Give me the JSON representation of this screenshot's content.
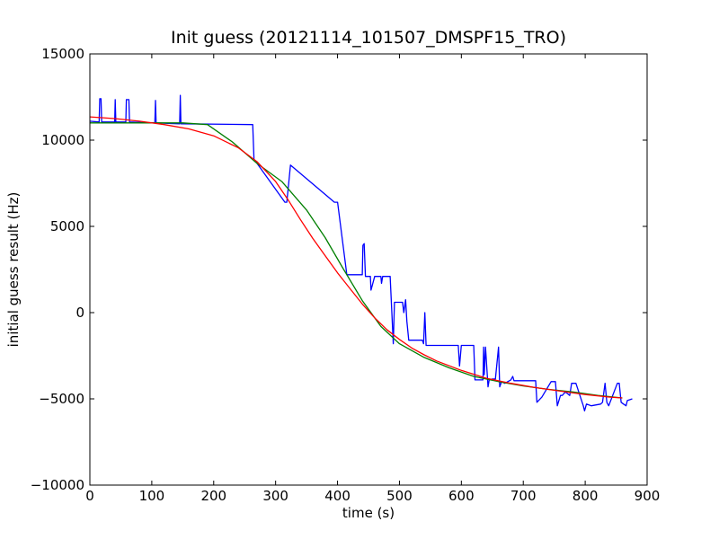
{
  "chart_data": {
    "type": "line",
    "title": "Init guess (20121114_101507_DMSPF15_TRO)",
    "xlabel": "time (s)",
    "ylabel": "initial guess result (Hz)",
    "xlim": [
      0,
      900
    ],
    "ylim": [
      -10000,
      15000
    ],
    "xticks": [
      0,
      100,
      200,
      300,
      400,
      500,
      600,
      700,
      800,
      900
    ],
    "yticks": [
      -10000,
      -5000,
      0,
      5000,
      10000,
      15000
    ],
    "xtick_labels": [
      "0",
      "100",
      "200",
      "300",
      "400",
      "500",
      "600",
      "700",
      "800",
      "900"
    ],
    "ytick_labels": [
      "−10000",
      "−5000",
      "0",
      "5000",
      "10000",
      "15000"
    ],
    "grid": false,
    "legend": "none",
    "series": [
      {
        "color": "#0000ff",
        "x": [
          0,
          15,
          16,
          18,
          19,
          40,
          41,
          42,
          58,
          59,
          60,
          63,
          64,
          105,
          106,
          107,
          145,
          146,
          147,
          263,
          265,
          315,
          318,
          322,
          324,
          395,
          400,
          415,
          432,
          440,
          441,
          443,
          445,
          453,
          454,
          460,
          465,
          470,
          471,
          473,
          475,
          485,
          490,
          492,
          505,
          507,
          510,
          512,
          515,
          525,
          537,
          539,
          541,
          543,
          595,
          597,
          600,
          603,
          605,
          620,
          622,
          625,
          635,
          636,
          637,
          639,
          643,
          645,
          650,
          655,
          660,
          662,
          665,
          670,
          675,
          680,
          683,
          685,
          720,
          722,
          730,
          745,
          748,
          752,
          755,
          760,
          763,
          768,
          775,
          778,
          785,
          797,
          799,
          802,
          810,
          825,
          828,
          832,
          835,
          838,
          852,
          855,
          858,
          862,
          866,
          868,
          876
        ],
        "y": [
          11100,
          11050,
          12400,
          12400,
          11050,
          11050,
          12350,
          11050,
          11050,
          12350,
          12350,
          12350,
          11050,
          11000,
          12300,
          11000,
          10950,
          12600,
          10950,
          10900,
          8900,
          6400,
          6400,
          7800,
          8550,
          6400,
          6400,
          2200,
          2200,
          2200,
          3900,
          4000,
          2100,
          2100,
          1300,
          2100,
          2100,
          2100,
          1700,
          2100,
          2100,
          2100,
          -1800,
          600,
          600,
          0,
          750,
          -500,
          -1600,
          -1600,
          -1600,
          -1800,
          0,
          -1900,
          -1900,
          -3100,
          -1900,
          -1900,
          -1900,
          -1900,
          -3900,
          -3900,
          -3900,
          -2000,
          -3600,
          -2000,
          -4300,
          -3900,
          -3850,
          -3850,
          -2000,
          -4300,
          -4000,
          -4100,
          -4000,
          -3900,
          -3700,
          -3950,
          -3950,
          -5200,
          -4900,
          -4000,
          -4000,
          -4000,
          -5400,
          -4800,
          -4800,
          -4600,
          -4800,
          -4100,
          -4100,
          -5400,
          -5700,
          -5300,
          -5400,
          -5300,
          -5200,
          -4100,
          -5200,
          -5400,
          -4100,
          -4100,
          -5200,
          -5300,
          -5400,
          -5100,
          -5000
        ]
      },
      {
        "color": "#007f00",
        "x": [
          0,
          50,
          100,
          150,
          190,
          230,
          270,
          310,
          350,
          380,
          410,
          440,
          470,
          500,
          540,
          580,
          620,
          660,
          700,
          740,
          780,
          820,
          860
        ],
        "y": [
          11000,
          11000,
          11000,
          11000,
          10900,
          9900,
          8650,
          7600,
          5950,
          4350,
          2500,
          700,
          -800,
          -1800,
          -2600,
          -3200,
          -3700,
          -4000,
          -4250,
          -4450,
          -4600,
          -4800,
          -4950
        ]
      },
      {
        "color": "#ff0000",
        "x": [
          0,
          40,
          80,
          120,
          160,
          200,
          240,
          270,
          300,
          320,
          340,
          360,
          380,
          400,
          420,
          440,
          460,
          480,
          500,
          520,
          540,
          560,
          600,
          640,
          680,
          720,
          760,
          800,
          840,
          860
        ],
        "y": [
          11350,
          11250,
          11100,
          10900,
          10650,
          10250,
          9550,
          8750,
          7600,
          6550,
          5400,
          4300,
          3300,
          2300,
          1400,
          500,
          -300,
          -1000,
          -1550,
          -2050,
          -2450,
          -2800,
          -3350,
          -3800,
          -4100,
          -4350,
          -4550,
          -4750,
          -4900,
          -4950
        ]
      }
    ]
  }
}
